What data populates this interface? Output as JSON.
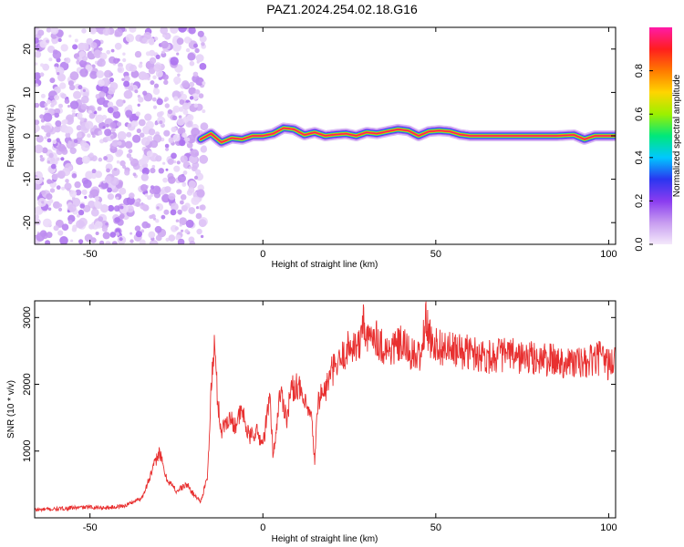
{
  "title": "PAZ1.2024.254.02.18.G16",
  "colors": {
    "snr_line": "#e83030",
    "colormap": [
      "#f4e9fb",
      "#c79cf0",
      "#8a3cf0",
      "#2a36f0",
      "#00c8ff",
      "#00e87a",
      "#9cf000",
      "#ffd500",
      "#ff7a00",
      "#ff1e1e",
      "#ff1aa8"
    ]
  },
  "chart_data": [
    {
      "type": "heatmap",
      "title": "PAZ1.2024.254.02.18.G16",
      "xlabel": "Height of straight line (km)",
      "ylabel": "Frequency (Hz)",
      "xlim": [
        -66,
        102
      ],
      "ylim": [
        -25,
        25
      ],
      "x_ticks": [
        -50,
        0,
        50,
        100
      ],
      "y_ticks": [
        -20,
        -10,
        0,
        10,
        20
      ],
      "colorbar": {
        "label": "Normalized spectral amplitude",
        "range": [
          0,
          1
        ],
        "ticks": [
          "0.0",
          "0.2",
          "0.4",
          "0.6",
          "0.8"
        ]
      },
      "noise_region_x": [
        -66,
        -18
      ],
      "ridge": {
        "x": [
          -18,
          -15,
          -12,
          -9,
          -6,
          -3,
          0,
          3,
          6,
          9,
          12,
          15,
          18,
          21,
          24,
          27,
          30,
          33,
          36,
          39,
          42,
          45,
          48,
          51,
          54,
          57,
          60,
          65,
          70,
          75,
          80,
          85,
          90,
          93,
          96,
          99,
          102
        ],
        "freq": [
          -0.8,
          0.5,
          -1.5,
          -0.5,
          -0.8,
          0.0,
          0.0,
          0.5,
          1.8,
          1.5,
          0.2,
          0.8,
          0.0,
          0.3,
          0.5,
          0.0,
          0.8,
          0.5,
          1.0,
          1.5,
          1.2,
          0.0,
          1.0,
          1.2,
          1.0,
          0.3,
          0.0,
          0.0,
          0.0,
          0.0,
          0.0,
          0.0,
          0.2,
          -0.8,
          0.0,
          0.0,
          0.0
        ],
        "peak_amplitude": 1.0
      }
    },
    {
      "type": "line",
      "xlabel": "Height of straight line (km)",
      "ylabel": "SNR (10 * v/v)",
      "xlim": [
        -66,
        102
      ],
      "ylim": [
        0,
        3250
      ],
      "x_ticks": [
        -50,
        0,
        50,
        100
      ],
      "y_ticks": [
        1000,
        2000,
        3000
      ],
      "x": [
        -66,
        -60,
        -55,
        -50,
        -45,
        -40,
        -35,
        -32,
        -30,
        -28,
        -25,
        -22,
        -20,
        -18,
        -16,
        -15,
        -14,
        -13,
        -12,
        -10,
        -8,
        -6,
        -4,
        -2,
        0,
        2,
        3,
        4,
        5,
        6,
        7,
        8,
        10,
        12,
        14,
        15,
        16,
        18,
        20,
        22,
        24,
        26,
        28,
        29,
        30,
        31,
        32,
        34,
        36,
        38,
        40,
        42,
        44,
        46,
        47,
        48,
        50,
        52,
        55,
        60,
        65,
        70,
        75,
        80,
        85,
        90,
        93,
        95,
        98,
        100,
        102
      ],
      "snr": [
        120,
        130,
        150,
        160,
        150,
        180,
        300,
        700,
        1000,
        600,
        400,
        500,
        350,
        250,
        600,
        1900,
        2600,
        1700,
        1300,
        1500,
        1400,
        1600,
        1200,
        1300,
        1100,
        1800,
        900,
        1400,
        1900,
        1700,
        1500,
        1900,
        2000,
        1700,
        1500,
        850,
        1800,
        1900,
        2200,
        2300,
        2500,
        2600,
        2550,
        3050,
        2600,
        2700,
        2800,
        2600,
        2500,
        2550,
        2600,
        2500,
        2400,
        2450,
        3000,
        2700,
        2600,
        2550,
        2500,
        2480,
        2420,
        2450,
        2400,
        2380,
        2350,
        2330,
        2300,
        2350,
        2400,
        2300,
        2350
      ]
    }
  ]
}
